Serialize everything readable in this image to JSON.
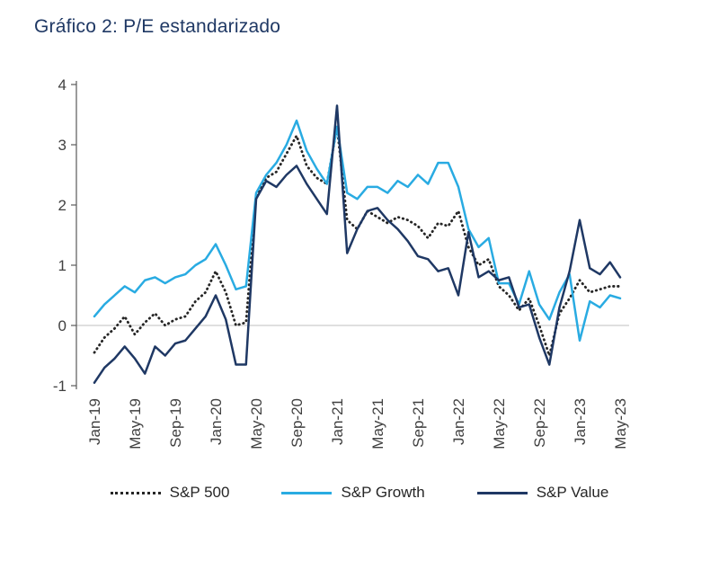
{
  "title": "Gráfico 2: P/E estandarizado",
  "colors": {
    "title_text": "#1F3864",
    "axis_text": "#404040",
    "axis_line": "#595959",
    "zero_gridline": "#BFBFBF"
  },
  "chart_data": {
    "type": "line",
    "title": "Gráfico 2: P/E estandarizado",
    "xlabel": "",
    "ylabel": "",
    "ylim": [
      -1,
      4
    ],
    "yticks": [
      4,
      3,
      2,
      1,
      0,
      -1
    ],
    "grid": "zero-line-only",
    "legend_position": "bottom",
    "x_tick_every_months": 4,
    "x_tick_labels": [
      "Jan-19",
      "May-19",
      "Sep-19",
      "Jan-20",
      "May-20",
      "Sep-20",
      "Jan-21",
      "May-21",
      "Sep-21",
      "Jan-22",
      "May-22",
      "Sep-22",
      "Jan-23",
      "May-23"
    ],
    "months": [
      "Jan-19",
      "Feb-19",
      "Mar-19",
      "Apr-19",
      "May-19",
      "Jun-19",
      "Jul-19",
      "Aug-19",
      "Sep-19",
      "Oct-19",
      "Nov-19",
      "Dec-19",
      "Jan-20",
      "Feb-20",
      "Mar-20",
      "Apr-20",
      "May-20",
      "Jun-20",
      "Jul-20",
      "Aug-20",
      "Sep-20",
      "Oct-20",
      "Nov-20",
      "Dec-20",
      "Jan-21",
      "Feb-21",
      "Mar-21",
      "Apr-21",
      "May-21",
      "Jun-21",
      "Jul-21",
      "Aug-21",
      "Sep-21",
      "Oct-21",
      "Nov-21",
      "Dec-21",
      "Jan-22",
      "Feb-22",
      "Mar-22",
      "Apr-22",
      "May-22",
      "Jun-22",
      "Jul-22",
      "Aug-22",
      "Sep-22",
      "Oct-22",
      "Nov-22",
      "Dec-22",
      "Jan-23",
      "Feb-23",
      "Mar-23",
      "Apr-23",
      "May-23"
    ],
    "series": [
      {
        "name": "S&P 500",
        "color": "#262626",
        "style": "dotted",
        "values": [
          -0.45,
          -0.2,
          -0.05,
          0.15,
          -0.15,
          0.05,
          0.2,
          0.0,
          0.1,
          0.15,
          0.4,
          0.55,
          0.9,
          0.55,
          0.0,
          0.05,
          2.15,
          2.45,
          2.55,
          2.85,
          3.15,
          2.65,
          2.45,
          2.35,
          3.3,
          1.75,
          1.6,
          1.9,
          1.8,
          1.7,
          1.8,
          1.75,
          1.65,
          1.45,
          1.7,
          1.65,
          1.9,
          1.3,
          1.0,
          1.1,
          0.65,
          0.5,
          0.25,
          0.45,
          0.0,
          -0.5,
          0.2,
          0.45,
          0.75,
          0.55,
          0.6,
          0.65,
          0.65
        ]
      },
      {
        "name": "S&P Growth",
        "color": "#29ABE2",
        "style": "solid",
        "values": [
          0.15,
          0.35,
          0.5,
          0.65,
          0.55,
          0.75,
          0.8,
          0.7,
          0.8,
          0.85,
          1.0,
          1.1,
          1.35,
          1.0,
          0.6,
          0.65,
          2.2,
          2.5,
          2.7,
          3.0,
          3.4,
          2.9,
          2.6,
          2.35,
          3.3,
          2.2,
          2.1,
          2.3,
          2.3,
          2.2,
          2.4,
          2.3,
          2.5,
          2.35,
          2.7,
          2.7,
          2.3,
          1.6,
          1.3,
          1.45,
          0.7,
          0.7,
          0.35,
          0.9,
          0.35,
          0.1,
          0.55,
          0.85,
          -0.25,
          0.4,
          0.3,
          0.5,
          0.45
        ]
      },
      {
        "name": "S&P Value",
        "color": "#1F3864",
        "style": "solid",
        "values": [
          -0.95,
          -0.7,
          -0.55,
          -0.35,
          -0.55,
          -0.8,
          -0.35,
          -0.5,
          -0.3,
          -0.25,
          -0.05,
          0.15,
          0.5,
          0.1,
          -0.65,
          -0.65,
          2.1,
          2.4,
          2.3,
          2.5,
          2.65,
          2.35,
          2.1,
          1.85,
          3.65,
          1.2,
          1.6,
          1.9,
          1.95,
          1.75,
          1.6,
          1.4,
          1.15,
          1.1,
          0.9,
          0.95,
          0.5,
          1.55,
          0.8,
          0.9,
          0.75,
          0.8,
          0.3,
          0.35,
          -0.2,
          -0.65,
          0.3,
          0.9,
          1.75,
          0.95,
          0.85,
          1.05,
          0.8
        ]
      }
    ]
  }
}
